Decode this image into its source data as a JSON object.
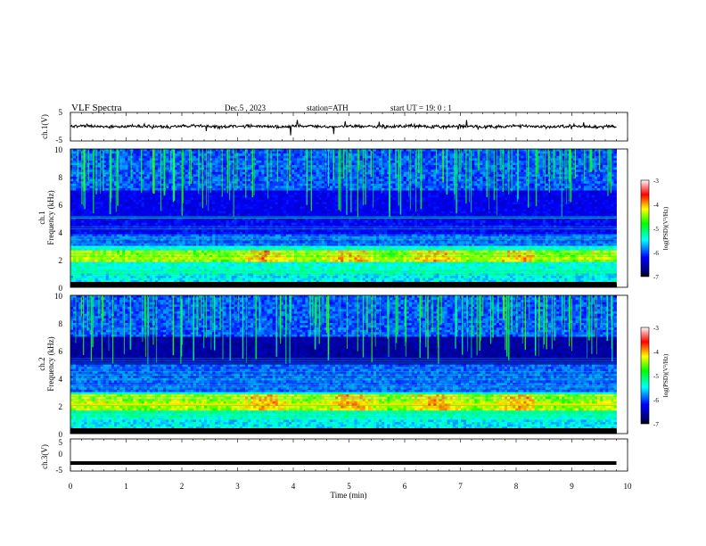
{
  "header": {
    "title": "VLF  Spectra",
    "date": "Dec.5  , 2023",
    "station": "station=ATH",
    "start_ut": "start  UT  =    19: 0   : 1"
  },
  "chart_data": [
    {
      "type": "line",
      "name": "ch1-waveform",
      "ylabel": "ch.1(V)",
      "ylim": [
        -5,
        5
      ],
      "yticks": [
        "5",
        "-5"
      ],
      "x_range_min": [
        0,
        9.8
      ],
      "level": 0.1,
      "grid": false
    },
    {
      "type": "heatmap",
      "name": "ch1-spectrogram",
      "ylabel": "ch.1\nFrequency (kHz)",
      "ylabel_lines": [
        "ch.1",
        "Frequency (kHz)"
      ],
      "ylim": [
        0,
        10
      ],
      "yticks": [
        "0",
        "2",
        "4",
        "6",
        "8",
        "10"
      ],
      "x_range_min": [
        0,
        9.8
      ],
      "features": {
        "dark_band_khz": [
          3.9,
          5.0
        ],
        "strong_band_khz": [
          1.8,
          2.6
        ],
        "sferics": "vertical impulsive streaks from 10 kHz down to ~6 kHz across the whole record"
      },
      "colorbar": {
        "label": "log(PSD)(V²/Hz)",
        "range": [
          -7,
          -3
        ],
        "ticks": [
          "-3",
          "-4",
          "-5",
          "-6",
          "-7"
        ]
      }
    },
    {
      "type": "heatmap",
      "name": "ch2-spectrogram",
      "ylabel": "ch.2\nFrequency (kHz)",
      "ylabel_lines": [
        "ch.2",
        "Frequency (kHz)"
      ],
      "ylim": [
        0,
        10
      ],
      "yticks": [
        "0",
        "2",
        "4",
        "6",
        "8",
        "10"
      ],
      "x_range_min": [
        0,
        9.8
      ],
      "features": {
        "dark_band_khz": [
          5.0,
          7.0
        ],
        "strong_band_khz": [
          1.7,
          2.8
        ],
        "sferics": "vertical impulsive streaks from 10 kHz down to ~6 kHz across the whole record"
      },
      "colorbar": {
        "label": "log(PSD)(V²/Hz)",
        "range": [
          -7,
          -3
        ],
        "ticks": [
          "-3",
          "-4",
          "-5",
          "-6",
          "-7"
        ]
      }
    },
    {
      "type": "line",
      "name": "ch3-waveform",
      "ylabel": "ch.3(V)",
      "ylim": [
        -5,
        5
      ],
      "yticks": [
        "5",
        "0",
        "-5"
      ],
      "x_range_min": [
        0,
        9.8
      ],
      "level": -2.5,
      "grid": false
    }
  ],
  "xaxis": {
    "label": "Time  (min)",
    "ticks": [
      "0",
      "1",
      "2",
      "3",
      "4",
      "5",
      "6",
      "7",
      "8",
      "9",
      "10"
    ],
    "range": [
      0,
      10
    ]
  }
}
